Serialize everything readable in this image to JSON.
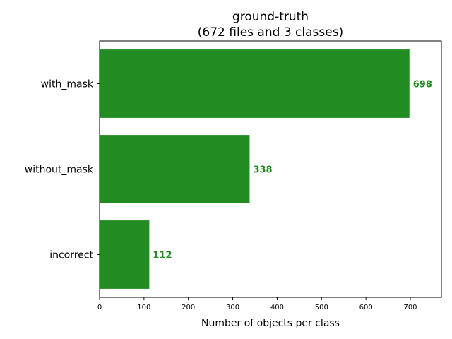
{
  "chart_data": {
    "type": "bar",
    "orientation": "horizontal",
    "title": "ground-truth",
    "subtitle": "(672 files and 3 classes)",
    "xlabel": "Number of objects per class",
    "ylabel": "",
    "categories": [
      "with_mask",
      "without_mask",
      "incorrect"
    ],
    "values": [
      698,
      338,
      112
    ],
    "data_labels": [
      "698",
      "338",
      "112"
    ],
    "xlim": [
      0,
      770
    ],
    "xticks": [
      0,
      100,
      200,
      300,
      400,
      500,
      600,
      700
    ],
    "grid": false,
    "color": "#228b22"
  }
}
